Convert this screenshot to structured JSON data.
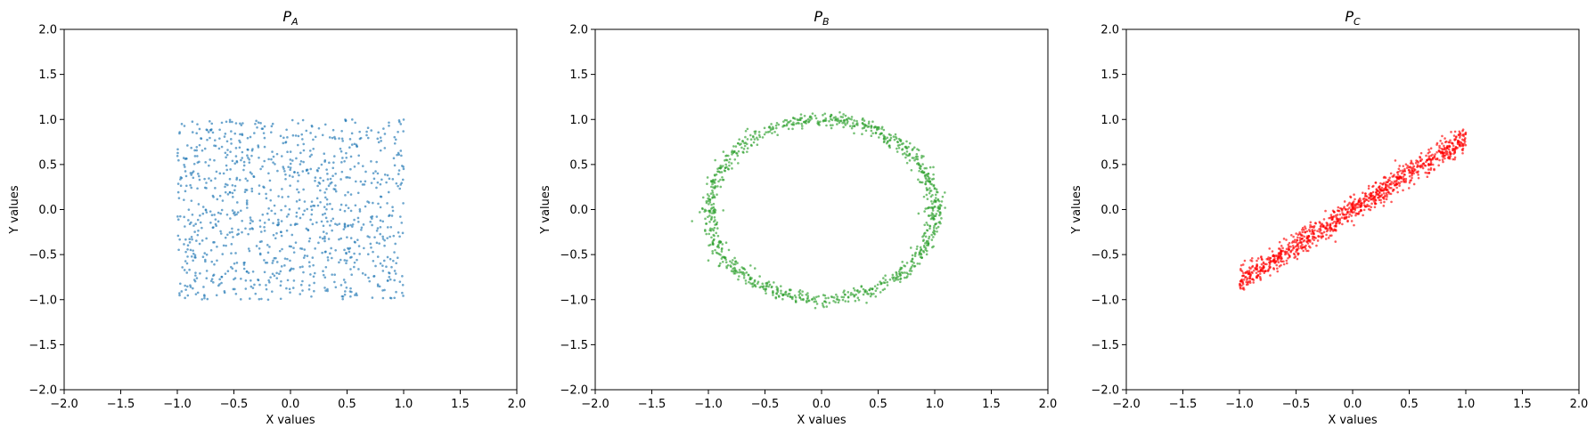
{
  "chart_data": [
    {
      "type": "scatter",
      "title": "P",
      "title_subscript": "A",
      "xlabel": "X values",
      "ylabel": "Y values",
      "xlim": [
        -2.0,
        2.0
      ],
      "ylim": [
        -2.0,
        2.0
      ],
      "xticks": [
        "-2.0",
        "-1.5",
        "-1.0",
        "-0.5",
        "0.0",
        "0.5",
        "1.0",
        "1.5",
        "2.0"
      ],
      "yticks": [
        "-2.0",
        "-1.5",
        "-1.0",
        "-0.5",
        "0.0",
        "0.5",
        "1.0",
        "1.5",
        "2.0"
      ],
      "grid": false,
      "color": "#1f77b4",
      "distribution": "uniform square x∈[-1,1], y∈[-1,1]",
      "n_points": 1000
    },
    {
      "type": "scatter",
      "title": "P",
      "title_subscript": "B",
      "xlabel": "X values",
      "ylabel": "Y values",
      "xlim": [
        -2.0,
        2.0
      ],
      "ylim": [
        -2.0,
        2.0
      ],
      "xticks": [
        "-2.0",
        "-1.5",
        "-1.0",
        "-0.5",
        "0.0",
        "0.5",
        "1.0",
        "1.5",
        "2.0"
      ],
      "yticks": [
        "-2.0",
        "-1.5",
        "-1.0",
        "-0.5",
        "0.0",
        "0.5",
        "1.0",
        "1.5",
        "2.0"
      ],
      "grid": false,
      "color": "#2ca02c",
      "distribution": "circle of radius 1 with noise",
      "n_points": 1000
    },
    {
      "type": "scatter",
      "title": "P",
      "title_subscript": "C",
      "xlabel": "X values",
      "ylabel": "Y values",
      "xlim": [
        -2.0,
        2.0
      ],
      "ylim": [
        -2.0,
        2.0
      ],
      "xticks": [
        "-2.0",
        "-1.5",
        "-1.0",
        "-0.5",
        "0.0",
        "0.5",
        "1.0",
        "1.5",
        "2.0"
      ],
      "yticks": [
        "-2.0",
        "-1.5",
        "-1.0",
        "-0.5",
        "0.0",
        "0.5",
        "1.0",
        "1.5",
        "2.0"
      ],
      "grid": false,
      "color": "#ff0000",
      "distribution": "line y ≈ 0.8x with noise, x∈[-1,1]",
      "n_points": 1000
    }
  ]
}
